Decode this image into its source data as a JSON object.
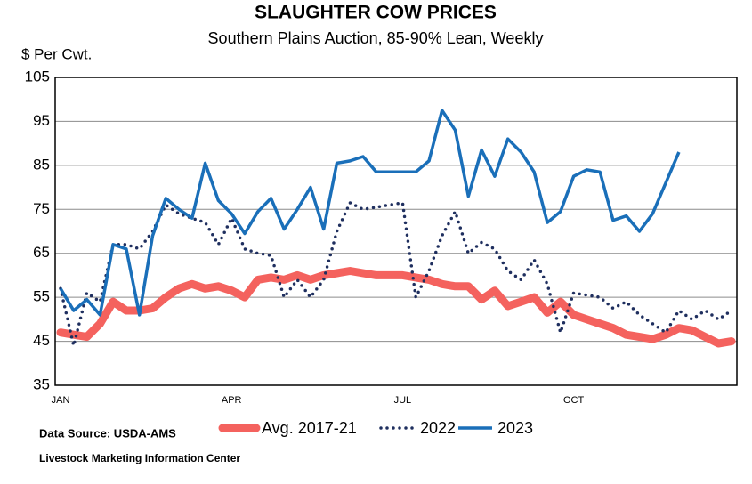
{
  "chart_data": {
    "type": "line",
    "title": "SLAUGHTER COW PRICES",
    "subtitle": "Southern Plains Auction, 85-90% Lean, Weekly",
    "y_label": "$ Per Cwt.",
    "source": "Data Source:  USDA-AMS",
    "credit": "Livestock Marketing Information Center",
    "categories": [
      "JAN",
      null,
      null,
      null,
      null,
      null,
      null,
      null,
      null,
      null,
      null,
      null,
      null,
      "APR",
      null,
      null,
      null,
      null,
      null,
      null,
      null,
      null,
      null,
      null,
      null,
      null,
      "JUL",
      null,
      null,
      null,
      null,
      null,
      null,
      null,
      null,
      null,
      null,
      null,
      null,
      "OCT",
      null,
      null,
      null,
      null,
      null,
      null,
      null,
      null,
      null,
      null,
      null,
      null
    ],
    "ylim": [
      35,
      105
    ],
    "yticks": [
      35,
      45,
      55,
      65,
      75,
      85,
      95,
      105
    ],
    "grid": true,
    "legend": "bottom",
    "series": [
      {
        "name": "Avg. 2017-21",
        "color": "#f4625e",
        "style": "thick",
        "values": [
          47,
          46.5,
          46,
          49,
          54,
          52,
          52,
          52.5,
          55,
          57,
          58,
          57,
          57.5,
          56.5,
          55,
          59,
          59.5,
          59,
          60,
          59,
          60,
          60.5,
          61,
          60.5,
          60,
          60,
          60,
          59.5,
          59,
          58,
          57.5,
          57.5,
          54.5,
          56.5,
          53,
          54,
          55,
          51.5,
          54,
          51,
          50,
          49,
          48,
          46.5,
          46,
          45.5,
          46.5,
          48,
          47.5,
          46,
          44.5,
          45
        ]
      },
      {
        "name": "2022",
        "color": "#1f2f5f",
        "style": "dotted",
        "values": [
          57,
          44,
          56,
          54,
          67,
          67,
          66,
          70,
          76,
          74,
          73,
          72,
          67,
          73,
          66,
          65,
          64.5,
          55,
          59,
          55,
          59,
          70,
          76.5,
          75,
          75.5,
          76,
          76.5,
          55,
          61,
          69,
          74.5,
          65,
          67.5,
          66,
          61,
          59,
          63.5,
          58,
          47,
          56,
          55.5,
          55,
          52.5,
          54,
          51,
          49,
          47,
          52,
          50,
          52,
          50,
          52
        ]
      },
      {
        "name": "2023",
        "color": "#1a6fb9",
        "style": "solid",
        "values": [
          57,
          52,
          54.5,
          51,
          67,
          66,
          51,
          69,
          77.5,
          75,
          73,
          85.5,
          77,
          74,
          69.5,
          74.5,
          77.5,
          70.5,
          75,
          80,
          70.5,
          85.5,
          86,
          87,
          83.5,
          83.5,
          83.5,
          83.5,
          86,
          97.5,
          93,
          78,
          88.5,
          82.5,
          91,
          88,
          83.5,
          72,
          74.5,
          82.5,
          84,
          83.5,
          72.5,
          73.5,
          70,
          74,
          81,
          88,
          null,
          null,
          null,
          null
        ]
      }
    ]
  }
}
